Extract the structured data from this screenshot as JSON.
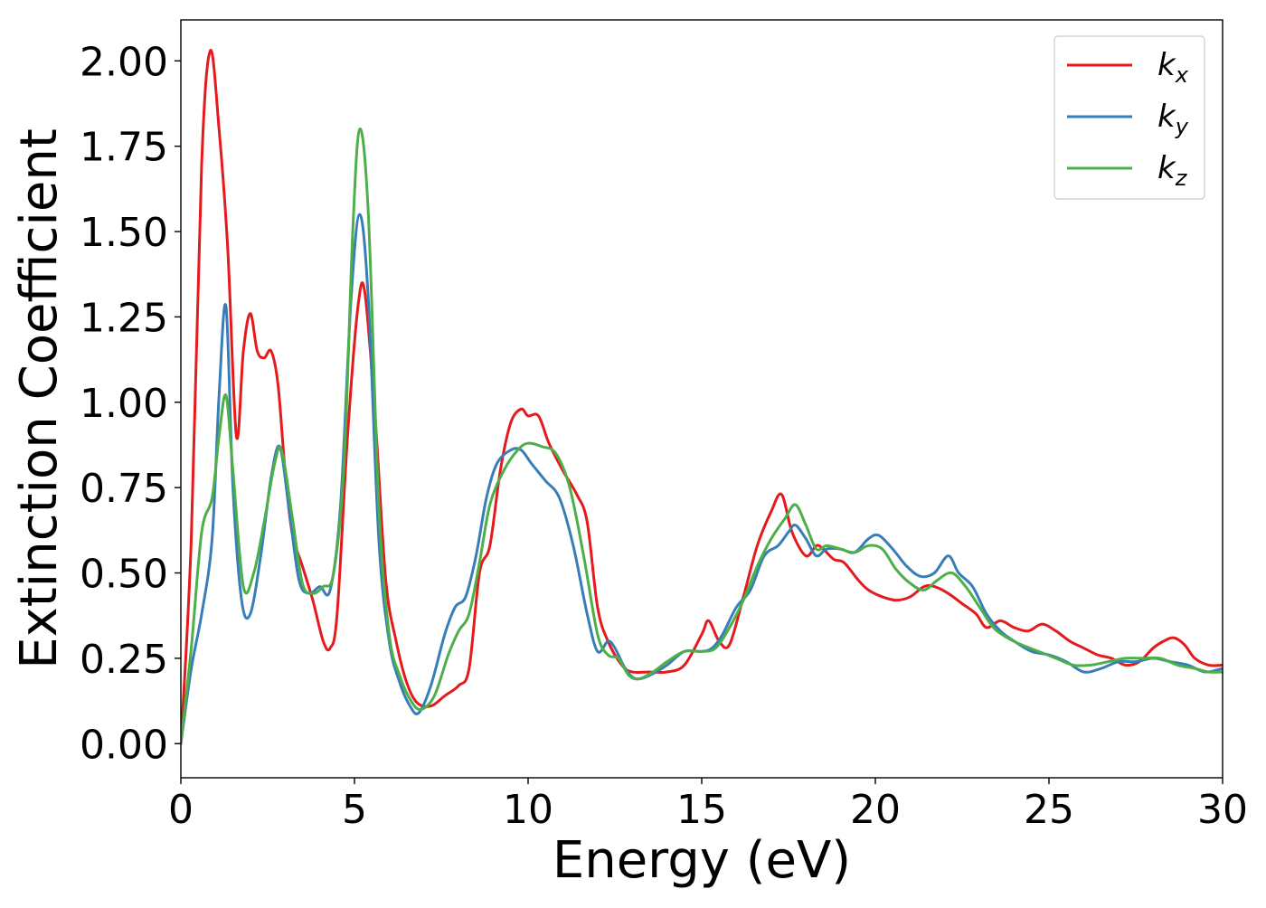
{
  "chart_data": {
    "type": "line",
    "title": "",
    "xlabel": "Energy (eV)",
    "ylabel": "Extinction Coefficient",
    "xlim": [
      0,
      30
    ],
    "ylim": [
      -0.1,
      2.12
    ],
    "xticks": [
      0,
      5,
      10,
      15,
      20,
      25,
      30
    ],
    "xtick_labels": [
      "0",
      "5",
      "10",
      "15",
      "20",
      "25",
      "30"
    ],
    "yticks": [
      0,
      0.25,
      0.5,
      0.75,
      1.0,
      1.25,
      1.5,
      1.75,
      2.0
    ],
    "ytick_labels": [
      "0.00",
      "0.25",
      "0.50",
      "0.75",
      "1.00",
      "1.25",
      "1.50",
      "1.75",
      "2.00"
    ],
    "grid": false,
    "legend_position": "top-right",
    "series": [
      {
        "name": "k",
        "subscript": "x",
        "color": "#e41a1c",
        "x": [
          0,
          0.3,
          0.6,
          0.85,
          1.1,
          1.35,
          1.6,
          1.8,
          2.0,
          2.2,
          2.4,
          2.6,
          2.8,
          3.0,
          3.2,
          3.5,
          3.8,
          4.1,
          4.3,
          4.5,
          4.8,
          5.1,
          5.3,
          5.6,
          5.9,
          6.2,
          6.5,
          6.8,
          7.2,
          7.6,
          8.0,
          8.3,
          8.6,
          8.9,
          9.2,
          9.5,
          9.8,
          10.0,
          10.3,
          10.6,
          11.0,
          11.4,
          11.7,
          12.0,
          12.3,
          12.7,
          13.0,
          13.5,
          14.0,
          14.5,
          15.0,
          15.2,
          15.5,
          15.8,
          16.2,
          16.6,
          17.0,
          17.3,
          17.6,
          18.0,
          18.3,
          18.5,
          18.8,
          19.1,
          19.5,
          19.8,
          20.2,
          20.6,
          21.0,
          21.4,
          21.7,
          22.1,
          22.5,
          22.9,
          23.2,
          23.6,
          24.0,
          24.4,
          24.8,
          25.2,
          25.6,
          26.0,
          26.4,
          26.8,
          27.2,
          27.6,
          28.0,
          28.3,
          28.6,
          28.9,
          29.2,
          29.6,
          30.0
        ],
        "values": [
          0.0,
          0.6,
          1.7,
          2.03,
          1.8,
          1.45,
          0.9,
          1.15,
          1.26,
          1.15,
          1.13,
          1.15,
          1.05,
          0.8,
          0.62,
          0.52,
          0.42,
          0.3,
          0.28,
          0.38,
          0.9,
          1.28,
          1.32,
          0.95,
          0.48,
          0.3,
          0.18,
          0.12,
          0.11,
          0.14,
          0.17,
          0.22,
          0.5,
          0.58,
          0.8,
          0.94,
          0.98,
          0.96,
          0.96,
          0.88,
          0.8,
          0.73,
          0.65,
          0.4,
          0.3,
          0.23,
          0.21,
          0.21,
          0.21,
          0.23,
          0.32,
          0.36,
          0.3,
          0.29,
          0.43,
          0.58,
          0.68,
          0.73,
          0.62,
          0.55,
          0.58,
          0.57,
          0.54,
          0.53,
          0.48,
          0.45,
          0.43,
          0.42,
          0.43,
          0.46,
          0.46,
          0.44,
          0.41,
          0.38,
          0.34,
          0.36,
          0.34,
          0.33,
          0.35,
          0.33,
          0.3,
          0.28,
          0.26,
          0.25,
          0.23,
          0.24,
          0.28,
          0.3,
          0.31,
          0.29,
          0.25,
          0.23,
          0.23
        ]
      },
      {
        "name": "k",
        "subscript": "y",
        "color": "#377eb8",
        "x": [
          0,
          0.3,
          0.6,
          0.9,
          1.1,
          1.3,
          1.5,
          1.75,
          2.0,
          2.3,
          2.6,
          2.85,
          3.1,
          3.4,
          3.7,
          4.0,
          4.3,
          4.6,
          4.9,
          5.15,
          5.4,
          5.7,
          6.0,
          6.3,
          6.6,
          6.85,
          7.2,
          7.6,
          7.9,
          8.2,
          8.5,
          8.8,
          9.1,
          9.5,
          9.8,
          10.1,
          10.5,
          10.9,
          11.3,
          11.7,
          12.0,
          12.3,
          12.5,
          12.8,
          13.1,
          13.5,
          14.0,
          14.5,
          15.0,
          15.3,
          15.6,
          16.0,
          16.4,
          16.8,
          17.2,
          17.5,
          17.7,
          18.0,
          18.3,
          18.6,
          19.0,
          19.4,
          19.8,
          20.1,
          20.5,
          20.9,
          21.3,
          21.7,
          22.1,
          22.4,
          22.8,
          23.2,
          23.6,
          24.0,
          24.5,
          25.0,
          25.5,
          26.0,
          26.5,
          27.0,
          27.5,
          28.0,
          28.5,
          29.0,
          29.5,
          30.0
        ],
        "values": [
          0.0,
          0.22,
          0.38,
          0.6,
          1.02,
          1.28,
          0.75,
          0.42,
          0.38,
          0.55,
          0.78,
          0.87,
          0.7,
          0.48,
          0.44,
          0.46,
          0.45,
          0.7,
          1.3,
          1.55,
          1.3,
          0.6,
          0.3,
          0.18,
          0.11,
          0.09,
          0.17,
          0.32,
          0.4,
          0.43,
          0.55,
          0.72,
          0.82,
          0.86,
          0.86,
          0.82,
          0.77,
          0.72,
          0.58,
          0.38,
          0.27,
          0.3,
          0.28,
          0.22,
          0.19,
          0.2,
          0.23,
          0.27,
          0.27,
          0.28,
          0.32,
          0.4,
          0.45,
          0.55,
          0.58,
          0.62,
          0.64,
          0.6,
          0.55,
          0.57,
          0.57,
          0.56,
          0.6,
          0.61,
          0.57,
          0.52,
          0.49,
          0.5,
          0.55,
          0.5,
          0.46,
          0.38,
          0.33,
          0.3,
          0.27,
          0.26,
          0.24,
          0.21,
          0.22,
          0.24,
          0.24,
          0.25,
          0.24,
          0.23,
          0.21,
          0.22
        ]
      },
      {
        "name": "k",
        "subscript": "z",
        "color": "#4daf4a",
        "x": [
          0,
          0.3,
          0.6,
          0.9,
          1.1,
          1.3,
          1.5,
          1.8,
          2.1,
          2.4,
          2.7,
          2.9,
          3.2,
          3.5,
          3.8,
          4.1,
          4.4,
          4.7,
          4.95,
          5.15,
          5.4,
          5.7,
          6.0,
          6.3,
          6.6,
          6.9,
          7.3,
          7.7,
          8.0,
          8.3,
          8.6,
          8.9,
          9.3,
          9.7,
          10.0,
          10.4,
          10.8,
          11.2,
          11.6,
          12.0,
          12.3,
          12.6,
          12.9,
          13.2,
          13.6,
          14.0,
          14.5,
          15.0,
          15.4,
          15.8,
          16.2,
          16.6,
          17.0,
          17.4,
          17.7,
          18.0,
          18.3,
          18.6,
          19.0,
          19.4,
          19.8,
          20.2,
          20.6,
          21.0,
          21.4,
          21.8,
          22.2,
          22.6,
          23.0,
          23.4,
          23.8,
          24.2,
          24.7,
          25.2,
          25.7,
          26.2,
          26.7,
          27.2,
          27.7,
          28.2,
          28.7,
          29.2,
          29.6,
          30.0
        ],
        "values": [
          0.0,
          0.28,
          0.62,
          0.72,
          0.9,
          1.02,
          0.8,
          0.46,
          0.5,
          0.65,
          0.82,
          0.86,
          0.67,
          0.47,
          0.44,
          0.46,
          0.5,
          0.82,
          1.5,
          1.8,
          1.55,
          0.7,
          0.32,
          0.2,
          0.13,
          0.1,
          0.14,
          0.26,
          0.33,
          0.38,
          0.53,
          0.7,
          0.8,
          0.86,
          0.88,
          0.87,
          0.85,
          0.75,
          0.55,
          0.32,
          0.26,
          0.25,
          0.2,
          0.19,
          0.21,
          0.24,
          0.27,
          0.27,
          0.28,
          0.34,
          0.42,
          0.52,
          0.6,
          0.66,
          0.7,
          0.64,
          0.57,
          0.58,
          0.57,
          0.56,
          0.58,
          0.57,
          0.51,
          0.47,
          0.45,
          0.48,
          0.5,
          0.46,
          0.4,
          0.34,
          0.31,
          0.29,
          0.27,
          0.25,
          0.23,
          0.23,
          0.24,
          0.25,
          0.25,
          0.25,
          0.23,
          0.22,
          0.21,
          0.21
        ]
      }
    ]
  }
}
